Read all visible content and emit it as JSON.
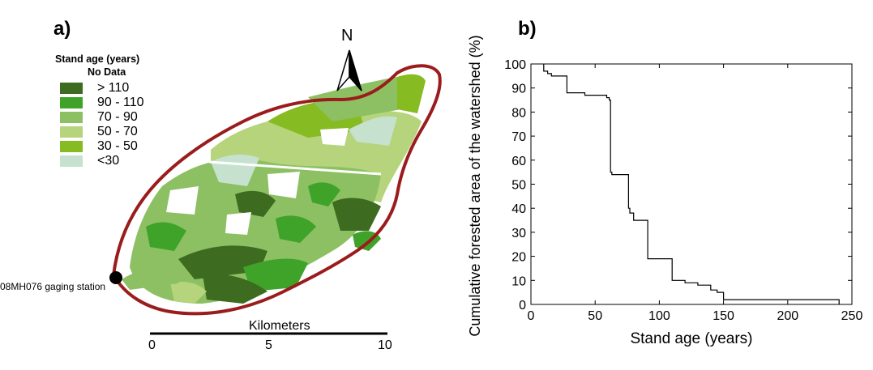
{
  "panel_a": {
    "label": "a)",
    "legend": {
      "title": "Stand age (years)",
      "no_data": "No Data",
      "items": [
        {
          "label": "> 110",
          "color": "#3d6b1f"
        },
        {
          "label": "90 - 110",
          "color": "#3fa32a"
        },
        {
          "label": "70 - 90",
          "color": "#8cc063"
        },
        {
          "label": "50 - 70",
          "color": "#b5d47c"
        },
        {
          "label": "30 - 50",
          "color": "#86bb22"
        },
        {
          "label": "<30",
          "color": "#c6e2cf"
        }
      ]
    },
    "north_label": "N",
    "station_label": "08MH076 gaging station",
    "boundary_color": "#9b1c1c",
    "scalebar": {
      "title": "Kilometers",
      "ticks": [
        "0",
        "5",
        "10"
      ]
    }
  },
  "panel_b": {
    "label": "b)"
  },
  "chart_data": {
    "type": "line",
    "title": "",
    "xlabel": "Stand age (years)",
    "ylabel": "Cumulative forested area of the watershed (%)",
    "xlim": [
      0,
      250
    ],
    "ylim": [
      0,
      100
    ],
    "xticks": [
      0,
      50,
      100,
      150,
      200,
      250
    ],
    "yticks": [
      0,
      10,
      20,
      30,
      40,
      50,
      60,
      70,
      80,
      90,
      100
    ],
    "grid": false,
    "step": true,
    "series": [
      {
        "x": [
          10,
          10,
          13,
          13,
          16,
          16,
          19,
          19,
          28,
          28,
          42,
          42,
          59,
          59,
          61,
          61,
          62,
          62,
          63,
          63,
          70,
          70,
          76,
          76,
          77,
          77,
          80,
          80,
          85,
          85,
          91,
          91,
          108,
          108,
          110,
          110,
          120,
          120,
          122,
          122,
          130,
          130,
          140,
          140,
          145,
          145,
          150,
          150,
          240,
          240
        ],
        "y": [
          100,
          97,
          97,
          96,
          96,
          95,
          95,
          95,
          95,
          88,
          88,
          87,
          87,
          86,
          86,
          85,
          85,
          55,
          55,
          54,
          54,
          54,
          54,
          40,
          40,
          38,
          38,
          35,
          35,
          35,
          35,
          19,
          19,
          19,
          19,
          10,
          10,
          9,
          9,
          9,
          9,
          8,
          8,
          6,
          6,
          5,
          5,
          2,
          2,
          0
        ],
        "color": "#000000"
      }
    ]
  }
}
